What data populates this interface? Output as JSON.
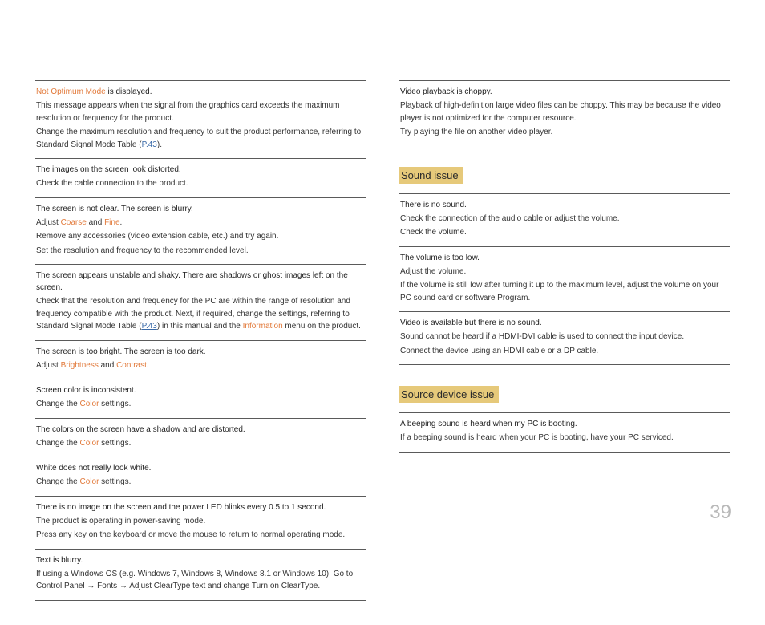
{
  "pageNumber": "39",
  "headings": {
    "soundIssue": "Sound issue",
    "sourceDeviceIssue": "Source device issue"
  },
  "colors": {
    "highlight": "#e6c97a",
    "orange": "#e27a3b",
    "link": "#3a6aa8"
  },
  "left": {
    "i0": {
      "t_pre": "",
      "t_orange": "Not Optimum Mode",
      "t_post": " is displayed.",
      "p1": "This message appears when the signal from the graphics card exceeds the maximum resolution or frequency for the product.",
      "p2a": "Change the maximum resolution and frequency to suit the product performance, referring to Standard Signal Mode Table (",
      "p2link": "P.43",
      "p2b": ")."
    },
    "i1": {
      "t": "The images on the screen look distorted.",
      "p1": "Check the cable connection to the product."
    },
    "i2": {
      "t": "The screen is not clear. The screen is blurry.",
      "p1a": "Adjust ",
      "p1o1": "Coarse",
      "p1mid": " and ",
      "p1o2": "Fine",
      "p1b": ".",
      "p2": "Remove any accessories (video extension cable, etc.) and try again.",
      "p3": "Set the resolution and frequency to the recommended level."
    },
    "i3": {
      "t": "The screen appears unstable and shaky. There are shadows or ghost images left on the screen.",
      "p1a": "Check that the resolution and frequency for the PC are within the range of resolution and frequency compatible with the product. Next, if required, change the settings, referring to Standard Signal Mode Table (",
      "p1link": "P.43",
      "p1b": ") in this manual and the ",
      "p1o": "Information",
      "p1c": " menu on the product."
    },
    "i4": {
      "t": "The screen is too bright. The screen is too dark.",
      "p1a": "Adjust ",
      "p1o1": "Brightness",
      "p1mid": " and ",
      "p1o2": "Contrast",
      "p1b": "."
    },
    "i5": {
      "t": "Screen color is inconsistent.",
      "p1a": "Change the ",
      "p1o": "Color",
      "p1b": " settings."
    },
    "i6": {
      "t": "The colors on the screen have a shadow and are distorted.",
      "p1a": "Change the ",
      "p1o": "Color",
      "p1b": " settings."
    },
    "i7": {
      "t": "White does not really look white.",
      "p1a": "Change the ",
      "p1o": "Color",
      "p1b": " settings."
    },
    "i8": {
      "t": "There is no image on the screen and the power LED blinks every 0.5 to 1 second.",
      "p1": "The product is operating in power-saving mode.",
      "p2": "Press any key on the keyboard or move the mouse to return to normal operating mode."
    },
    "i9": {
      "t": "Text is blurry.",
      "p1a": "If using a Windows OS (e.g. Windows 7, Windows 8, Windows 8.1 or Windows 10): Go to ",
      "p1b1": "Control Panel",
      "arrow1": " → ",
      "p1b2": "Fonts",
      "arrow2": " → ",
      "p1b3": "Adjust ClearType text",
      "p1mid": " and change ",
      "p1b4": "Turn on ClearType",
      "p1end": "."
    }
  },
  "right": {
    "i0": {
      "t": "Video playback is choppy.",
      "p1": "Playback of high-definition large video files can be choppy. This may be because the video player is not optimized for the computer resource.",
      "p2": "Try playing the file on another video player."
    },
    "sound": {
      "i0": {
        "t": "There is no sound.",
        "p1": "Check the connection of the audio cable or adjust the volume.",
        "p2": "Check the volume."
      },
      "i1": {
        "t": "The volume is too low.",
        "p1": "Adjust the volume.",
        "p2": "If the volume is still low after turning it up to the maximum level, adjust the volume on your PC sound card or software Program."
      },
      "i2": {
        "t": "Video is available but there is no sound.",
        "p1": "Sound cannot be heard if a HDMI-DVI cable is used to connect the input device.",
        "p2": "Connect the device using an HDMI cable or a DP cable."
      }
    },
    "source": {
      "i0": {
        "t": "A beeping sound is heard when my PC is booting.",
        "p1": "If a beeping sound is heard when your PC is booting, have your PC serviced."
      }
    }
  }
}
